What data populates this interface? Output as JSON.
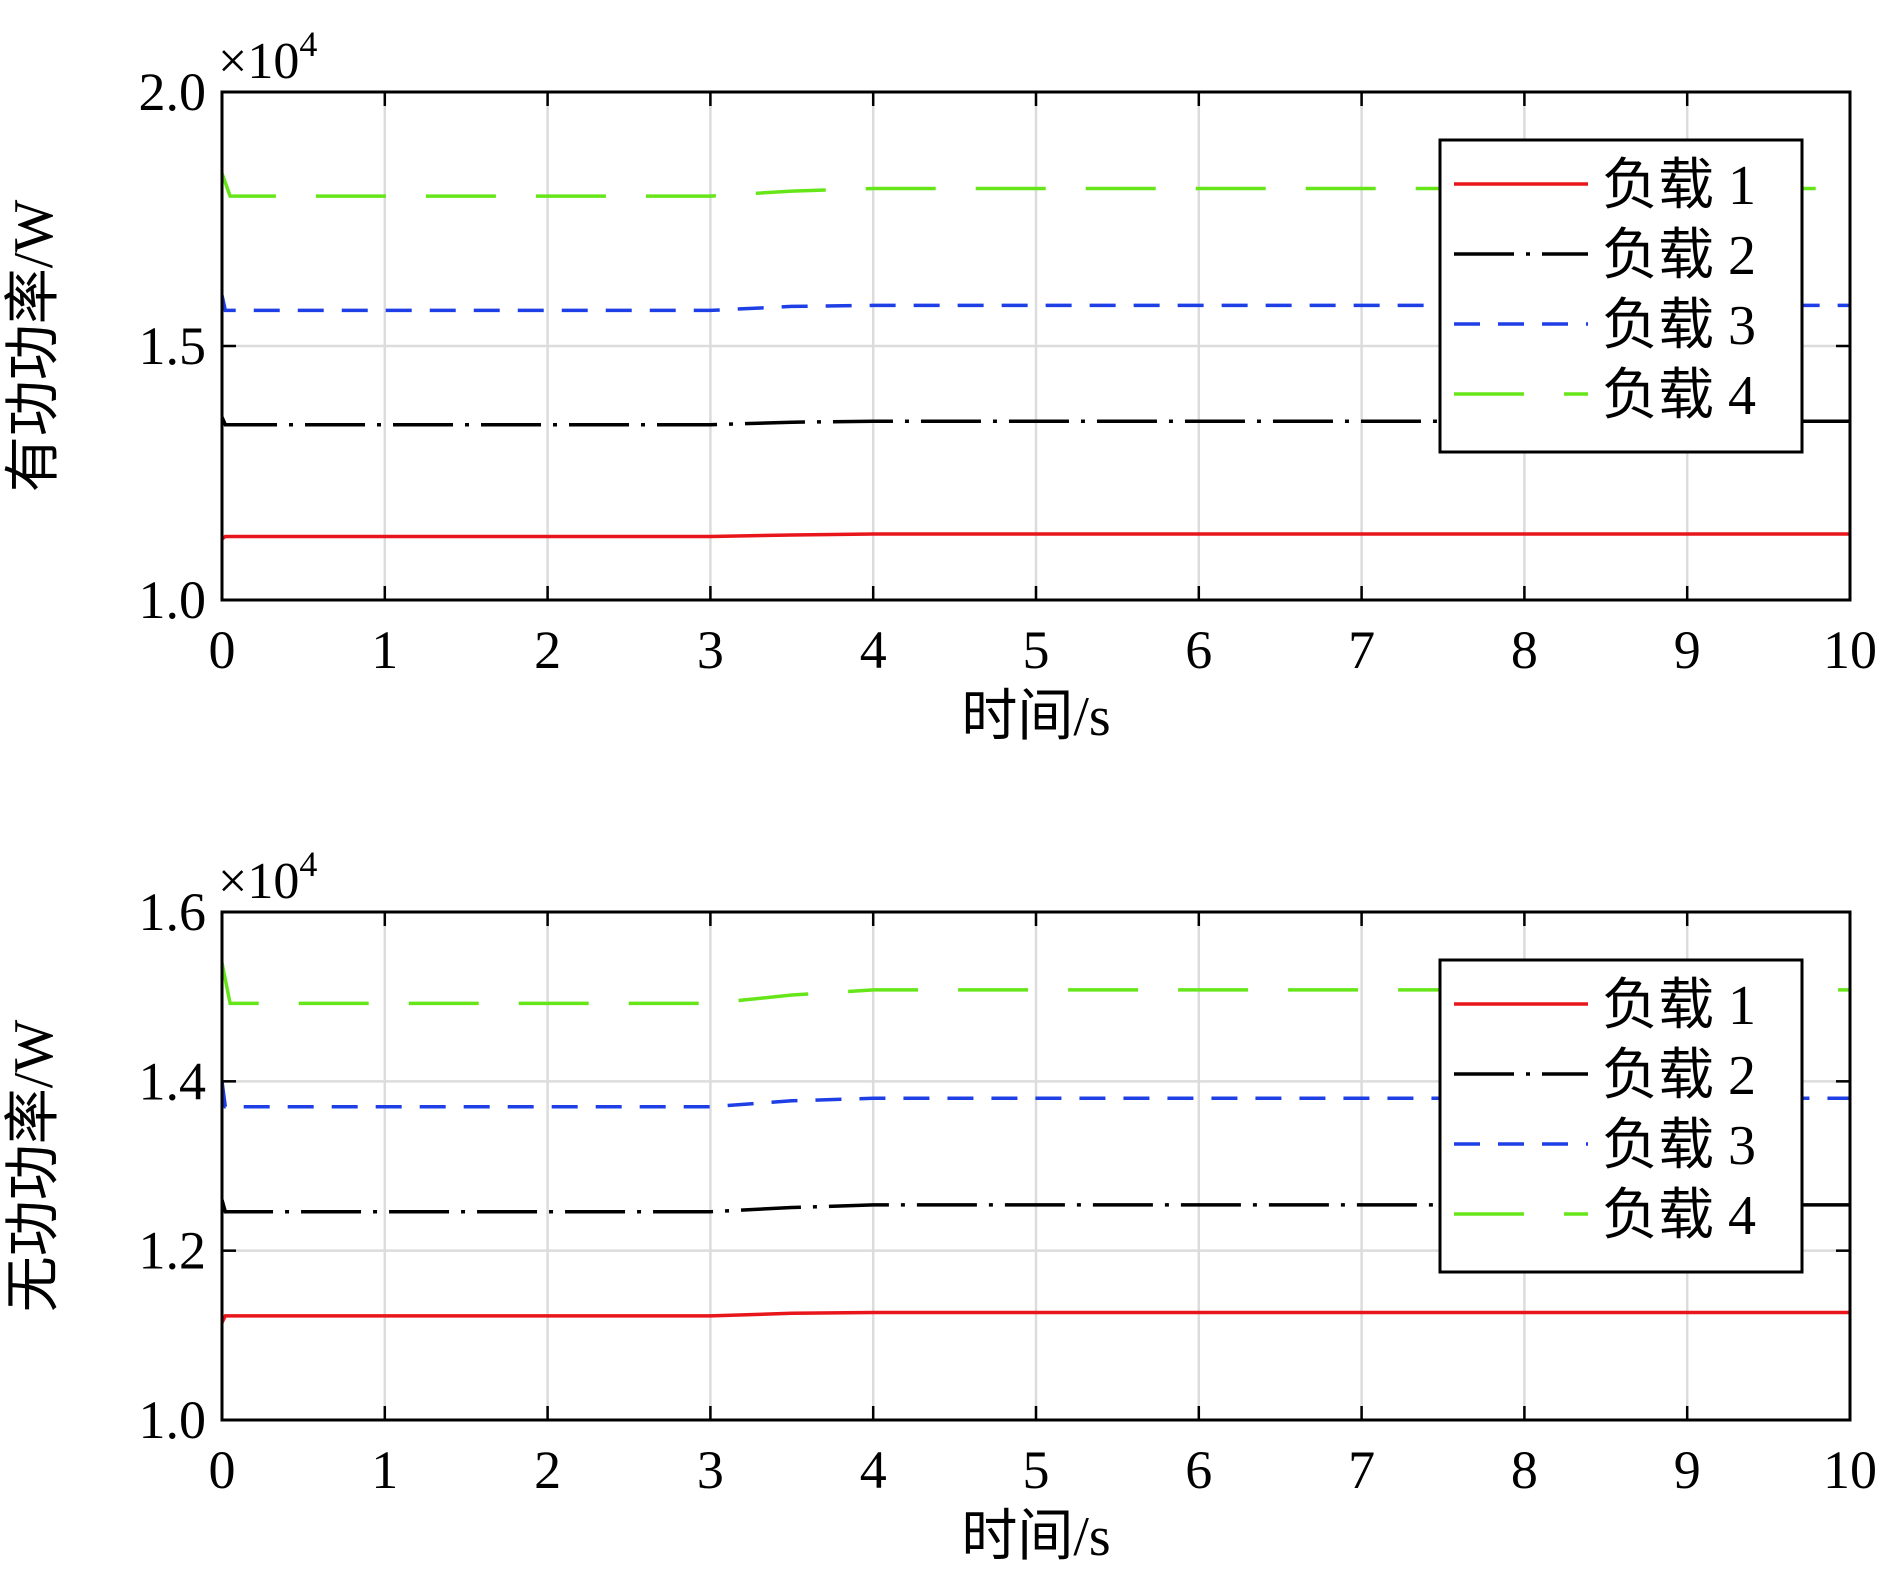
{
  "chart_data": [
    {
      "type": "line",
      "xlabel": "时间/s",
      "ylabel": "有功功率/W",
      "exponent_label": "×10",
      "exponent_power": "4",
      "xlim": [
        0,
        10
      ],
      "ylim": [
        1.0,
        2.0
      ],
      "x_ticks": [
        "0",
        "1",
        "2",
        "3",
        "4",
        "5",
        "6",
        "7",
        "8",
        "9",
        "10"
      ],
      "y_ticks": [
        "1.0",
        "1.5",
        "2.0"
      ],
      "grid": true,
      "legend_position": "top-right",
      "series": [
        {
          "name": "负载 1",
          "color": "#e8161b",
          "dash": "solid",
          "points": [
            [
              0,
              1.12
            ],
            [
              0.02,
              1.125
            ],
            [
              3.0,
              1.125
            ],
            [
              3.5,
              1.128
            ],
            [
              4.0,
              1.13
            ],
            [
              10,
              1.13
            ]
          ]
        },
        {
          "name": "负载 2",
          "color": "#000000",
          "dash": "dashdot",
          "points": [
            [
              0,
              1.36
            ],
            [
              0.02,
              1.345
            ],
            [
              3.0,
              1.345
            ],
            [
              3.5,
              1.35
            ],
            [
              4.0,
              1.352
            ],
            [
              10,
              1.352
            ]
          ]
        },
        {
          "name": "负载 3",
          "color": "#1f3fe6",
          "dash": "dashed",
          "points": [
            [
              0,
              1.6
            ],
            [
              0.02,
              1.57
            ],
            [
              3.0,
              1.57
            ],
            [
              3.5,
              1.578
            ],
            [
              4.0,
              1.58
            ],
            [
              10,
              1.58
            ]
          ]
        },
        {
          "name": "负载 4",
          "color": "#66e619",
          "dash": "longdash",
          "points": [
            [
              0,
              1.84
            ],
            [
              0.05,
              1.795
            ],
            [
              3.0,
              1.795
            ],
            [
              3.5,
              1.805
            ],
            [
              4.0,
              1.81
            ],
            [
              10,
              1.81
            ]
          ]
        }
      ]
    },
    {
      "type": "line",
      "xlabel": "时间/s",
      "ylabel": "无功功率/W",
      "exponent_label": "×10",
      "exponent_power": "4",
      "xlim": [
        0,
        10
      ],
      "ylim": [
        1.0,
        1.6
      ],
      "x_ticks": [
        "0",
        "1",
        "2",
        "3",
        "4",
        "5",
        "6",
        "7",
        "8",
        "9",
        "10"
      ],
      "y_ticks": [
        "1.0",
        "1.2",
        "1.4",
        "1.6"
      ],
      "grid": true,
      "legend_position": "top-right",
      "series": [
        {
          "name": "负载 1",
          "color": "#e8161b",
          "dash": "solid",
          "points": [
            [
              0,
              1.115
            ],
            [
              0.02,
              1.123
            ],
            [
              3.0,
              1.123
            ],
            [
              3.5,
              1.126
            ],
            [
              4.0,
              1.127
            ],
            [
              10,
              1.127
            ]
          ]
        },
        {
          "name": "负载 2",
          "color": "#000000",
          "dash": "dashdot",
          "points": [
            [
              0,
              1.26
            ],
            [
              0.02,
              1.246
            ],
            [
              3.0,
              1.246
            ],
            [
              3.5,
              1.251
            ],
            [
              4.0,
              1.254
            ],
            [
              10,
              1.254
            ]
          ]
        },
        {
          "name": "负载 3",
          "color": "#1f3fe6",
          "dash": "dashed",
          "points": [
            [
              0,
              1.4
            ],
            [
              0.02,
              1.37
            ],
            [
              3.0,
              1.37
            ],
            [
              3.5,
              1.377
            ],
            [
              4.0,
              1.38
            ],
            [
              10,
              1.38
            ]
          ]
        },
        {
          "name": "负载 4",
          "color": "#66e619",
          "dash": "longdash",
          "points": [
            [
              0,
              1.54
            ],
            [
              0.05,
              1.492
            ],
            [
              3.0,
              1.492
            ],
            [
              3.5,
              1.502
            ],
            [
              4.0,
              1.508
            ],
            [
              10,
              1.508
            ]
          ]
        }
      ]
    }
  ]
}
